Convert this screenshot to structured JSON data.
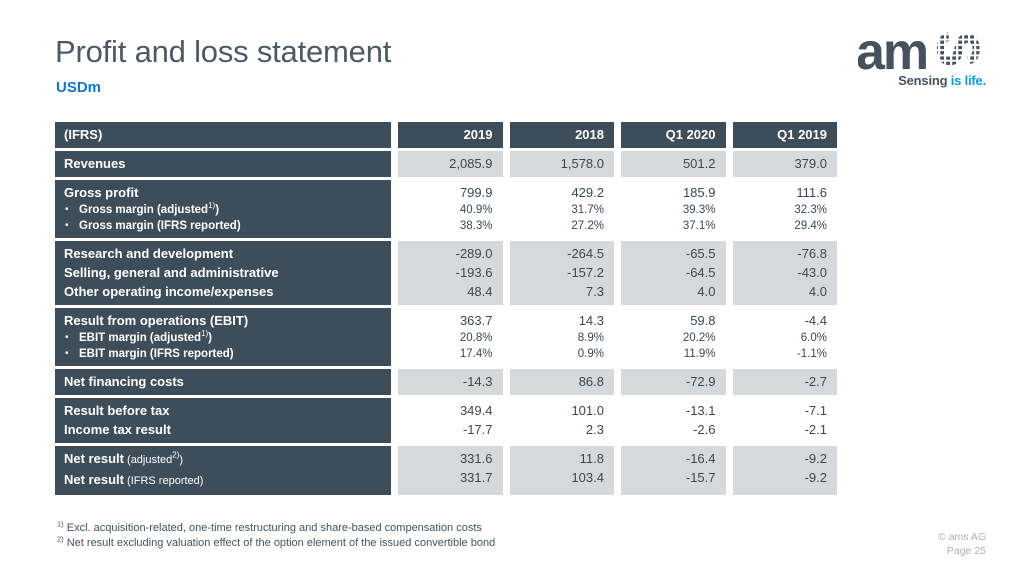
{
  "slide": {
    "title": "Profit and loss statement",
    "units": "USDm",
    "copyright": "© ams AG",
    "page": "Page 25"
  },
  "logo": {
    "wordmark": "am",
    "wordmark_s": "s",
    "tagline_prefix": "Sensing ",
    "tagline_accent": "is life."
  },
  "colors": {
    "dark_slate": "#3e4d5a",
    "cell_gray": "#d6d9db",
    "value_text": "#3c4752",
    "title_gray": "#4d5a66",
    "units_blue": "#0c79cc",
    "tagline_blue": "#0c9ce0",
    "logo_gray": "#45515d",
    "footer_gray": "#a9b0b6"
  },
  "footnotes": [
    {
      "marker": "1)",
      "text": " Excl. acquisition-related, one-time restructuring and share-based compensation costs"
    },
    {
      "marker": "2)",
      "text": " Net result excluding valuation effect of the option element of the issued convertible bond"
    }
  ],
  "table": {
    "header": {
      "label": "(IFRS)",
      "columns": [
        "2019",
        "2018",
        "Q1 2020",
        "Q1 2019"
      ]
    },
    "blocks": [
      {
        "shade": "gray",
        "rows": [
          {
            "segments": [
              {
                "t": "Revenues",
                "b": true
              }
            ],
            "values": [
              "2,085.9",
              "1,578.0",
              "501.2",
              "379.0"
            ]
          }
        ]
      },
      {
        "shade": "white",
        "rows": [
          {
            "segments": [
              {
                "t": "Gross profit",
                "b": true
              }
            ],
            "values": [
              "799.9",
              "429.2",
              "185.9",
              "111.6"
            ]
          },
          {
            "bullet": true,
            "small": true,
            "segments": [
              {
                "t": "Gross margin (adjusted"
              },
              {
                "t": "1)",
                "sup": true
              },
              {
                "t": ")"
              }
            ],
            "values": [
              "40.9%",
              "31.7%",
              "39.3%",
              "32.3%"
            ]
          },
          {
            "bullet": true,
            "small": true,
            "segments": [
              {
                "t": "Gross margin (IFRS reported)"
              }
            ],
            "values": [
              "38.3%",
              "27.2%",
              "37.1%",
              "29.4%"
            ]
          }
        ]
      },
      {
        "shade": "gray",
        "rows": [
          {
            "segments": [
              {
                "t": "Research and development",
                "b": true
              }
            ],
            "values": [
              "-289.0",
              "-264.5",
              "-65.5",
              "-76.8"
            ]
          },
          {
            "segments": [
              {
                "t": "Selling, general and administrative",
                "b": true
              }
            ],
            "values": [
              "-193.6",
              "-157.2",
              "-64.5",
              "-43.0"
            ]
          },
          {
            "segments": [
              {
                "t": "Other operating income/expenses",
                "b": true
              }
            ],
            "values": [
              "48.4",
              "7.3",
              "4.0",
              "4.0"
            ]
          }
        ]
      },
      {
        "shade": "white",
        "rows": [
          {
            "segments": [
              {
                "t": "Result from operations (EBIT)",
                "b": true
              }
            ],
            "values": [
              "363.7",
              "14.3",
              "59.8",
              "-4.4"
            ]
          },
          {
            "bullet": true,
            "small": true,
            "segments": [
              {
                "t": "EBIT margin (adjusted"
              },
              {
                "t": "1)",
                "sup": true
              },
              {
                "t": ")"
              }
            ],
            "values": [
              "20.8%",
              "8.9%",
              "20.2%",
              "6.0%"
            ]
          },
          {
            "bullet": true,
            "small": true,
            "segments": [
              {
                "t": "EBIT margin (IFRS reported)"
              }
            ],
            "values": [
              "17.4%",
              "0.9%",
              "11.9%",
              "-1.1%"
            ]
          }
        ]
      },
      {
        "shade": "gray",
        "rows": [
          {
            "segments": [
              {
                "t": "Net financing costs",
                "b": true
              }
            ],
            "values": [
              "-14.3",
              "86.8",
              "-72.9",
              "-2.7"
            ]
          }
        ]
      },
      {
        "shade": "white",
        "rows": [
          {
            "segments": [
              {
                "t": "Result before tax",
                "b": true
              }
            ],
            "values": [
              "349.4",
              "101.0",
              "-13.1",
              "-7.1"
            ]
          },
          {
            "segments": [
              {
                "t": "Income tax result",
                "b": true
              }
            ],
            "values": [
              "-17.7",
              "2.3",
              "-2.6",
              "-2.1"
            ]
          }
        ]
      },
      {
        "shade": "gray",
        "rows": [
          {
            "segments": [
              {
                "t": "Net result",
                "b": true
              },
              {
                "t": " (adjusted"
              },
              {
                "t": "2)",
                "sup": true
              },
              {
                "t": ")"
              }
            ],
            "values": [
              "331.6",
              "11.8",
              "-16.4",
              "-9.2"
            ]
          },
          {
            "segments": [
              {
                "t": "Net result",
                "b": true
              },
              {
                "t": " (IFRS reported)"
              }
            ],
            "values": [
              "331.7",
              "103.4",
              "-15.7",
              "-9.2"
            ]
          }
        ]
      }
    ]
  }
}
